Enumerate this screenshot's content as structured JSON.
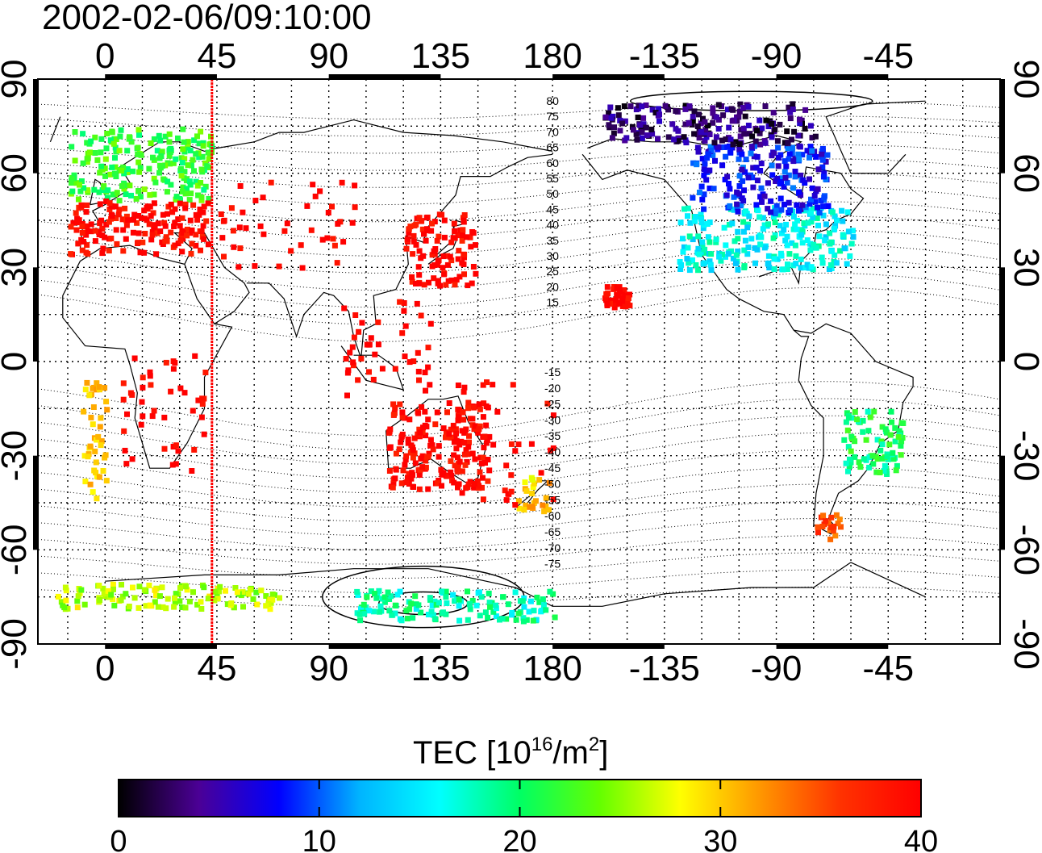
{
  "timestamp": "2002-02-06/09:10:00",
  "map": {
    "x_ticks_top": [
      "0",
      "45",
      "90",
      "135",
      "180",
      "-135",
      "-90",
      "-45"
    ],
    "x_ticks_bottom": [
      "0",
      "45",
      "90",
      "135",
      "180",
      "-135",
      "-90",
      "-45"
    ],
    "y_ticks_left": [
      "90",
      "60",
      "30",
      "0",
      "-30",
      "-60",
      "-90"
    ],
    "y_ticks_right": [
      "90",
      "60",
      "30",
      "0",
      "-30",
      "-60",
      "-90"
    ],
    "longitude_range_deg": [
      -27,
      360
    ],
    "latitude_range_deg": [
      -90,
      90
    ],
    "grid": true,
    "grid_spacing_deg": 15,
    "marker_longitude_deg": 43,
    "marker_color": "#ff0000",
    "magnetic_latitude_labels_north": [
      "80",
      "75",
      "70",
      "65",
      "60",
      "55",
      "50",
      "45",
      "40",
      "35",
      "30",
      "25",
      "20",
      "15"
    ],
    "magnetic_latitude_labels_south": [
      "-15",
      "-20",
      "-25",
      "-30",
      "-35",
      "-40",
      "-45",
      "-50",
      "-55",
      "-60",
      "-65",
      "-70",
      "-75"
    ]
  },
  "colorbar": {
    "title": "TEC  [10",
    "title_exp": "16",
    "title_mid": "/m",
    "title_exp2": "2",
    "title_end": "]",
    "tick_labels": [
      "0",
      "10",
      "20",
      "30",
      "40"
    ],
    "range": [
      0,
      40
    ],
    "colors": [
      "#000000",
      "#4b0096",
      "#0000ff",
      "#00b4ff",
      "#00ffff",
      "#00ff64",
      "#64ff00",
      "#ffff00",
      "#ff9600",
      "#ff3200",
      "#ff0000"
    ]
  },
  "chart_data": {
    "type": "heatmap",
    "title": "2002-02-06/09:10:00",
    "xlabel": "",
    "ylabel": "",
    "xlim": [
      -27,
      360
    ],
    "ylim": [
      -90,
      90
    ],
    "value_label": "TEC [10^16/m^2]",
    "value_range": [
      0,
      40
    ],
    "regions": [
      {
        "lon": [
          -15,
          42
        ],
        "lat": [
          52,
          75
        ],
        "tec": 22
      },
      {
        "lon": [
          -15,
          42
        ],
        "lat": [
          35,
          52
        ],
        "tec": 40
      },
      {
        "lon": [
          120,
          148
        ],
        "lat": [
          25,
          48
        ],
        "tec": 40
      },
      {
        "lon": [
          -130,
          -60
        ],
        "lat": [
          30,
          50
        ],
        "tec": 16
      },
      {
        "lon": [
          -125,
          -70
        ],
        "lat": [
          48,
          70
        ],
        "tec": 8
      },
      {
        "lon": [
          -160,
          -75
        ],
        "lat": [
          70,
          83
        ],
        "tec": 3
      },
      {
        "lon": [
          -65,
          -40
        ],
        "lat": [
          -35,
          -15
        ],
        "tec": 20
      },
      {
        "lon": [
          -75,
          -65
        ],
        "lat": [
          -56,
          -48
        ],
        "tec": 35
      },
      {
        "lon": [
          165,
          178
        ],
        "lat": [
          -47,
          -36
        ],
        "tec": 30
      },
      {
        "lon": [
          113,
          153
        ],
        "lat": [
          -40,
          -12
        ],
        "tec": 40
      },
      {
        "lon": [
          -20,
          70
        ],
        "lat": [
          -78,
          -70
        ],
        "tec": 26
      },
      {
        "lon": [
          100,
          180
        ],
        "lat": [
          -82,
          -72
        ],
        "tec": 18
      }
    ]
  }
}
